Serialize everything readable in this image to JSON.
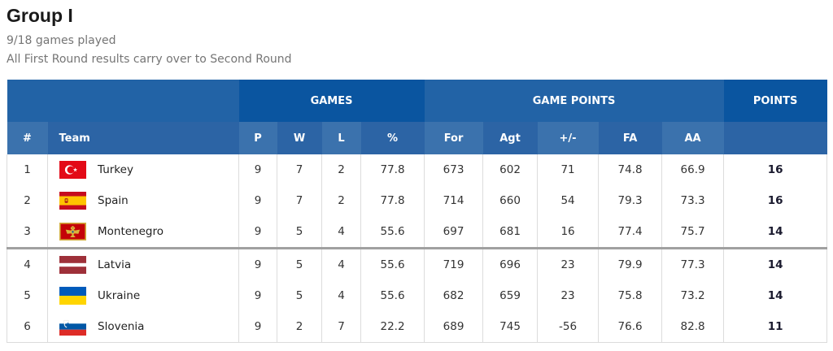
{
  "page": {
    "title": "Group I",
    "games_played": "9/18 games played",
    "note": "All First Round results carry over to Second Round"
  },
  "colors": {
    "group_light": "#2263a6",
    "group_dark": "#0a55a0",
    "sub_light": "#3b72ad",
    "sub_dark": "#2c64a5",
    "header_text": "#ffffff",
    "body_text": "#333333",
    "points_text": "#1b1b2f",
    "subtitle_text": "#757575",
    "col_border": "#dcdcdc",
    "cutoff_border": "#a0a0a0"
  },
  "table": {
    "group_headers": {
      "games": "GAMES",
      "game_points": "GAME POINTS",
      "points": "POINTS"
    },
    "column_headers": {
      "rank": "#",
      "team": "Team",
      "p": "P",
      "w": "W",
      "l": "L",
      "pct": "%",
      "for": "For",
      "agt": "Agt",
      "diff": "+/-",
      "fa": "FA",
      "aa": "AA"
    },
    "rows": [
      {
        "rank": "1",
        "team": "Turkey",
        "flag": "turkey",
        "p": "9",
        "w": "7",
        "l": "2",
        "pct": "77.8",
        "for": "673",
        "agt": "602",
        "diff": "71",
        "fa": "74.8",
        "aa": "66.9",
        "points": "16"
      },
      {
        "rank": "2",
        "team": "Spain",
        "flag": "spain",
        "p": "9",
        "w": "7",
        "l": "2",
        "pct": "77.8",
        "for": "714",
        "agt": "660",
        "diff": "54",
        "fa": "79.3",
        "aa": "73.3",
        "points": "16"
      },
      {
        "rank": "3",
        "team": "Montenegro",
        "flag": "montenegro",
        "p": "9",
        "w": "5",
        "l": "4",
        "pct": "55.6",
        "for": "697",
        "agt": "681",
        "diff": "16",
        "fa": "77.4",
        "aa": "75.7",
        "points": "14"
      },
      {
        "rank": "4",
        "team": "Latvia",
        "flag": "latvia",
        "p": "9",
        "w": "5",
        "l": "4",
        "pct": "55.6",
        "for": "719",
        "agt": "696",
        "diff": "23",
        "fa": "79.9",
        "aa": "77.3",
        "points": "14",
        "cutoff_above": true
      },
      {
        "rank": "5",
        "team": "Ukraine",
        "flag": "ukraine",
        "p": "9",
        "w": "5",
        "l": "4",
        "pct": "55.6",
        "for": "682",
        "agt": "659",
        "diff": "23",
        "fa": "75.8",
        "aa": "73.2",
        "points": "14"
      },
      {
        "rank": "6",
        "team": "Slovenia",
        "flag": "slovenia",
        "p": "9",
        "w": "2",
        "l": "7",
        "pct": "22.2",
        "for": "689",
        "agt": "745",
        "diff": "-56",
        "fa": "76.6",
        "aa": "82.8",
        "points": "11"
      }
    ]
  }
}
